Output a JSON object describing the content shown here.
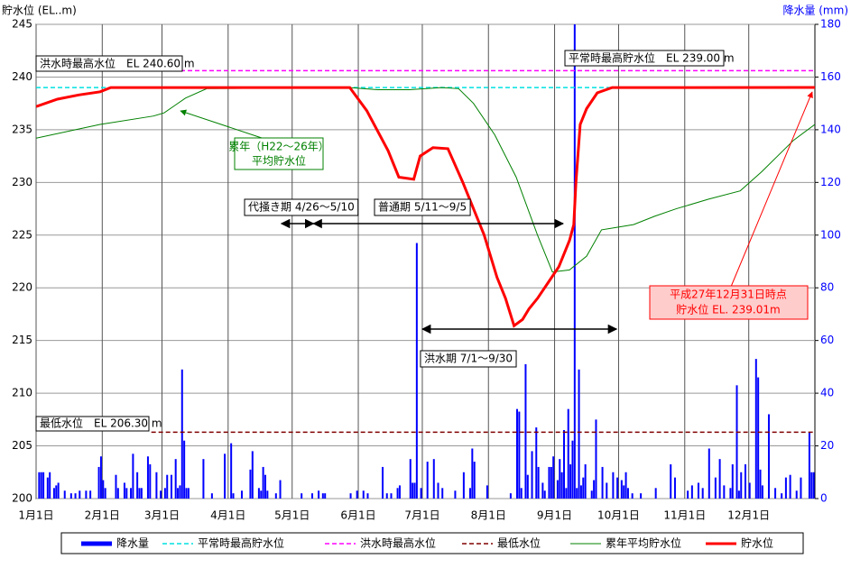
{
  "chart_data": {
    "type": "combo",
    "y_label": "貯水位 (EL..m)",
    "y2_label": "降水量 (mm)",
    "xlim": [
      0,
      365
    ],
    "xticks": [
      {
        "value": 0,
        "label": "1月1日"
      },
      {
        "value": 31,
        "label": "2月1日"
      },
      {
        "value": 59,
        "label": "3月1日"
      },
      {
        "value": 90,
        "label": "4月1日"
      },
      {
        "value": 120,
        "label": "5月1日"
      },
      {
        "value": 151,
        "label": "6月1日"
      },
      {
        "value": 181,
        "label": "7月1日"
      },
      {
        "value": 212,
        "label": "8月1日"
      },
      {
        "value": 243,
        "label": "9月1日"
      },
      {
        "value": 273,
        "label": "10月1日"
      },
      {
        "value": 304,
        "label": "11月1日"
      },
      {
        "value": 334,
        "label": "12月1日"
      }
    ],
    "ylim": [
      200,
      245
    ],
    "yticks": [
      200,
      205,
      210,
      215,
      220,
      225,
      230,
      235,
      240,
      245
    ],
    "y2lim": [
      0,
      180
    ],
    "y2ticks": [
      0,
      20,
      40,
      60,
      80,
      100,
      120,
      140,
      160,
      180
    ],
    "grid": true,
    "series": [
      {
        "name": "降水量",
        "kind": "bar",
        "axis": "y2",
        "color": "#0000ff",
        "x": [
          1,
          2,
          3,
          5,
          6,
          8,
          9,
          10,
          13,
          16,
          18,
          20,
          23,
          25,
          29,
          30,
          31,
          32,
          37,
          38,
          41,
          42,
          44,
          45,
          47,
          48,
          49,
          52,
          53,
          56,
          58,
          60,
          61,
          63,
          65,
          66,
          67,
          68,
          69,
          70,
          71,
          78,
          82,
          88,
          91,
          92,
          96,
          100,
          101,
          104,
          105,
          106,
          107,
          108,
          112,
          114,
          124,
          129,
          132,
          134,
          135,
          147,
          150,
          153,
          155,
          162,
          164,
          166,
          169,
          170,
          175,
          176,
          177,
          178,
          180,
          183,
          186,
          188,
          190,
          196,
          200,
          203,
          204,
          205,
          211,
          222,
          225,
          226,
          227,
          229,
          230,
          232,
          234,
          235,
          237,
          238,
          240,
          241,
          242,
          244,
          245,
          246,
          247,
          248,
          249,
          250,
          251,
          252,
          253,
          254,
          255,
          256,
          257,
          260,
          261,
          262,
          265,
          267,
          270,
          272,
          274,
          275,
          276,
          277,
          279,
          283,
          290,
          297,
          299,
          305,
          307,
          310,
          312,
          315,
          318,
          320,
          322,
          325,
          326,
          328,
          329,
          330,
          332,
          334,
          337,
          338,
          339,
          340,
          343,
          346,
          349,
          351,
          353,
          356,
          358,
          362,
          363,
          364
        ],
        "values": [
          10,
          10,
          10,
          8,
          10,
          4,
          5,
          6,
          3,
          2,
          2,
          3,
          3,
          3,
          12,
          16,
          7,
          4,
          9,
          4,
          6,
          4,
          4,
          17,
          10,
          4,
          4,
          16,
          13,
          10,
          3,
          4,
          9,
          9,
          15,
          4,
          5,
          49,
          22,
          4,
          4,
          15,
          2,
          17,
          21,
          2,
          3,
          11,
          18,
          4,
          3,
          12,
          9,
          3,
          2,
          7,
          2,
          2,
          3,
          2,
          2,
          2,
          3,
          3,
          2,
          12,
          2,
          2,
          4,
          5,
          15,
          6,
          6,
          97,
          4,
          14,
          15,
          6,
          4,
          3,
          10,
          4,
          19,
          14,
          5,
          2,
          34,
          33,
          4,
          51,
          9,
          18,
          27,
          12,
          6,
          3,
          12,
          12,
          16,
          7,
          15,
          10,
          26,
          4,
          34,
          13,
          22,
          185,
          4,
          49,
          5,
          8,
          13,
          3,
          7,
          30,
          12,
          6,
          10,
          8,
          7,
          5,
          10,
          4,
          2,
          2,
          4,
          13,
          8,
          3,
          5,
          6,
          4,
          19,
          8,
          15,
          5,
          4,
          13,
          43,
          3,
          10,
          13,
          6,
          53,
          46,
          11,
          5,
          32,
          4,
          2,
          8,
          9,
          3,
          8,
          25,
          10,
          10
        ]
      },
      {
        "name": "平常時最高貯水位",
        "kind": "dash",
        "color": "#00e0e0",
        "x": [
          0,
          365
        ],
        "values": [
          239.0,
          239.0
        ]
      },
      {
        "name": "洪水時最高水位",
        "kind": "dash",
        "color": "#ff00ff",
        "x": [
          0,
          365
        ],
        "values": [
          240.6,
          240.6
        ]
      },
      {
        "name": "最低水位",
        "kind": "dash",
        "color": "#800000",
        "x": [
          54,
          365
        ],
        "values": [
          206.3,
          206.3
        ]
      },
      {
        "name": "累年平均貯水位",
        "kind": "line",
        "color": "#008000",
        "width": 1,
        "x": [
          0,
          30,
          55,
          60,
          65,
          70,
          80,
          147,
          160,
          175,
          190,
          198,
          205,
          215,
          225,
          235,
          242,
          250,
          258,
          265,
          280,
          290,
          300,
          315,
          330,
          340,
          355,
          365
        ],
        "values": [
          234.2,
          235.5,
          236.3,
          236.6,
          237.3,
          238.0,
          238.9,
          239.0,
          238.8,
          238.8,
          239.0,
          238.9,
          237.5,
          234.5,
          230.5,
          225.0,
          221.5,
          221.7,
          223.0,
          225.5,
          226.0,
          226.8,
          227.5,
          228.4,
          229.2,
          231.0,
          234.0,
          235.5
        ]
      },
      {
        "name": "貯水位",
        "kind": "line",
        "color": "#ff0000",
        "width": 3,
        "x": [
          0,
          10,
          20,
          30,
          35,
          147,
          155,
          165,
          170,
          177,
          180,
          186,
          193,
          200,
          210,
          216,
          220,
          224,
          228,
          231,
          235,
          240,
          245,
          250,
          252,
          253,
          255,
          258,
          263,
          270,
          365
        ],
        "values": [
          237.2,
          237.9,
          238.3,
          238.6,
          239.0,
          239.0,
          236.8,
          233.0,
          230.5,
          230.3,
          232.5,
          233.3,
          233.2,
          230.0,
          225.0,
          221.0,
          219.0,
          216.4,
          217.0,
          218.0,
          219.0,
          220.5,
          222.0,
          224.5,
          226.0,
          230.0,
          235.5,
          237.0,
          238.5,
          239.0,
          239.01
        ]
      }
    ],
    "annotations": [
      {
        "text": "洪水時最高水位　EL 240.60 m"
      },
      {
        "text": "平常時最高貯水位　EL 239.00 m"
      },
      {
        "text": "最低水位　EL 206.30 m"
      },
      {
        "lines": [
          "累年（H22〜26年）",
          "平均貯水位"
        ]
      },
      {
        "lines": [
          "平成27年12月31日時点",
          "貯水位 EL. 239.01m"
        ]
      }
    ],
    "periods": [
      {
        "label": "代掻き期 4/26〜5/10",
        "start": 115,
        "end": 130
      },
      {
        "label": "普通期 5/11〜9/5",
        "start": 130,
        "end": 247
      },
      {
        "label": "洪水期 7/1〜9/30",
        "start": 181,
        "end": 272
      }
    ]
  }
}
